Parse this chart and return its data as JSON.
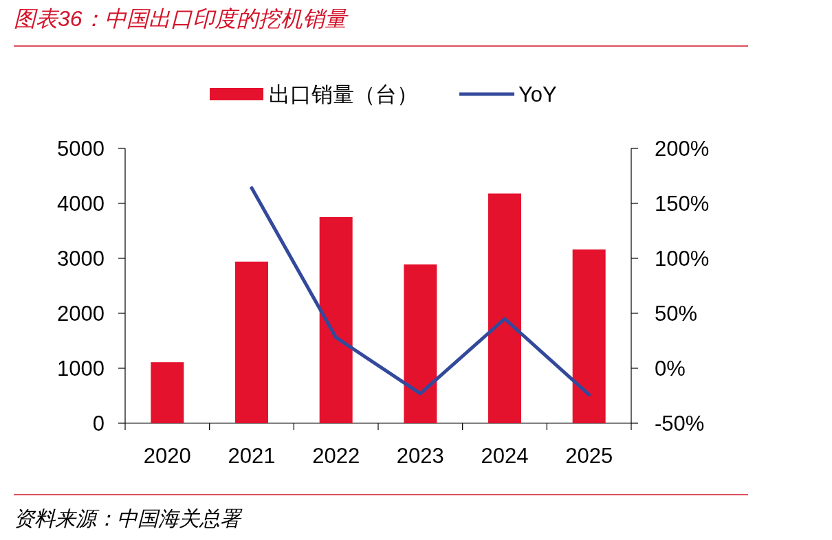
{
  "chart_data": {
    "type": "bar",
    "title": "图表36：中国出口印度的挖机销量",
    "categories": [
      "2020",
      "2021",
      "2022",
      "2023",
      "2024",
      "2025"
    ],
    "series": [
      {
        "name": "出口销量（台）",
        "color": "#e5122e",
        "values": [
          1110,
          2940,
          3750,
          2890,
          4180,
          3160
        ]
      },
      {
        "name": "YoY",
        "type": "line",
        "axis": "y2",
        "color": "#33499b",
        "values": [
          null,
          164,
          28,
          -23,
          45,
          -24
        ]
      }
    ],
    "ylim": [
      0,
      5000
    ],
    "yticks": [
      0,
      1000,
      2000,
      3000,
      4000,
      5000
    ],
    "y2lim": [
      -50,
      200
    ],
    "y2ticks": [
      {
        "value": -50,
        "label": "-50%"
      },
      {
        "value": 0,
        "label": "0%"
      },
      {
        "value": 50,
        "label": "50%"
      },
      {
        "value": 100,
        "label": "100%"
      },
      {
        "value": 150,
        "label": "150%"
      },
      {
        "value": 200,
        "label": "200%"
      }
    ],
    "legend": "top",
    "grid": false,
    "annotations": [
      "资料来源：中国海关总署"
    ]
  }
}
